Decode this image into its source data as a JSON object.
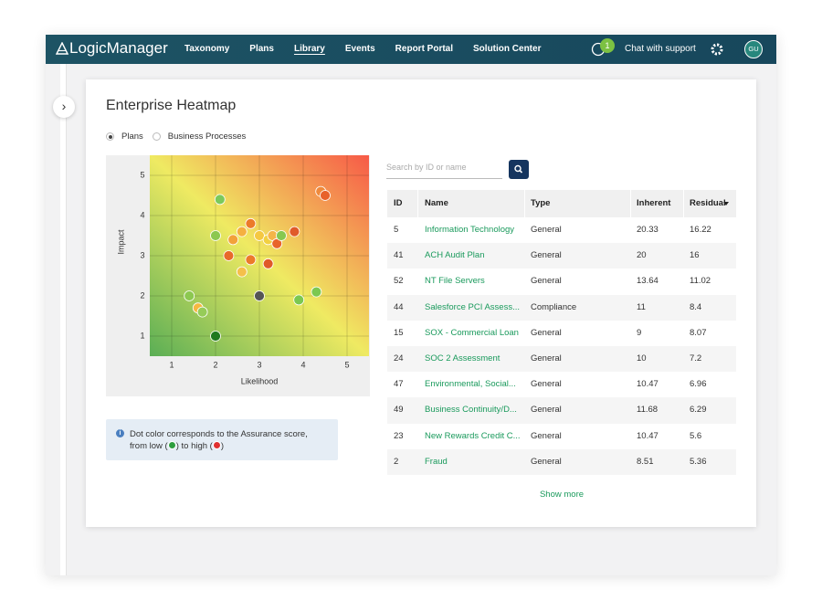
{
  "nav": {
    "logo": "LogicManager",
    "items": [
      "Taxonomy",
      "Plans",
      "Library",
      "Events",
      "Report Portal",
      "Solution Center"
    ],
    "active": 2,
    "badge": 1,
    "chat": "Chat with support",
    "avatar": "GU"
  },
  "page": {
    "title": "Enterprise Heatmap",
    "radios": [
      "Plans",
      "Business Processes"
    ],
    "selected": 0
  },
  "chart_data": {
    "type": "scatter",
    "xlabel": "Likelihood",
    "ylabel": "Impact",
    "x": [
      2.1,
      4.4,
      4.5,
      2.8,
      2.0,
      2.6,
      2.4,
      3.0,
      3.2,
      3.3,
      3.4,
      3.5,
      3.8,
      2.3,
      2.8,
      2.6,
      3.2,
      3.0,
      1.4,
      1.6,
      1.7,
      3.9,
      4.3,
      2.0
    ],
    "y": [
      4.4,
      4.6,
      4.5,
      3.8,
      3.5,
      3.6,
      3.4,
      3.5,
      3.4,
      3.5,
      3.3,
      3.5,
      3.6,
      3.0,
      2.9,
      2.6,
      2.8,
      2.0,
      2.0,
      1.7,
      1.6,
      1.9,
      2.1,
      1.0
    ],
    "colors": [
      "#7cc95a",
      "#f08a3c",
      "#e8622a",
      "#ec7a2a",
      "#8cc850",
      "#f5b040",
      "#f2a23a",
      "#f5c842",
      "#f2d040",
      "#f5b548",
      "#e8642a",
      "#86c850",
      "#e05a2a",
      "#e86a2a",
      "#ec7a2a",
      "#f5c04a",
      "#e05a28",
      "#555555",
      "#8cc850",
      "#f5b840",
      "#96cc58",
      "#7cc850",
      "#7cc850",
      "#1f7a1f"
    ],
    "xlim": [
      0.5,
      5.5
    ],
    "ylim": [
      0.5,
      5.5
    ],
    "xticks": [
      1,
      2,
      3,
      4,
      5
    ],
    "yticks": [
      1,
      2,
      3,
      4,
      5
    ],
    "grid": true
  },
  "note": {
    "text": "Dot color corresponds to the Assurance score, from low (",
    "mid": ") to high (",
    "end": ")",
    "low_color": "#2e9e3e",
    "high_color": "#e03030"
  },
  "search": {
    "placeholder": "Search by ID or name"
  },
  "table": {
    "columns": [
      "ID",
      "Name",
      "Type",
      "Inherent",
      "Residual"
    ],
    "sort_column": 4,
    "rows": [
      [
        5,
        "Information Technology",
        "General",
        20.33,
        16.22
      ],
      [
        41,
        "ACH Audit Plan",
        "General",
        20,
        16
      ],
      [
        52,
        "NT File Servers",
        "General",
        13.64,
        11.02
      ],
      [
        44,
        "Salesforce PCI Assess...",
        "Compliance",
        11,
        8.4
      ],
      [
        15,
        "SOX - Commercial Loan",
        "General",
        9,
        8.07
      ],
      [
        24,
        "SOC 2 Assessment",
        "General",
        10,
        7.2
      ],
      [
        47,
        "Environmental, Social...",
        "General",
        10.47,
        6.96
      ],
      [
        49,
        "Business Continuity/D...",
        "General",
        11.68,
        6.29
      ],
      [
        23,
        "New Rewards Credit C...",
        "General",
        10.47,
        5.6
      ],
      [
        2,
        "Fraud",
        "General",
        8.51,
        5.36
      ]
    ]
  },
  "show_more": "Show more"
}
